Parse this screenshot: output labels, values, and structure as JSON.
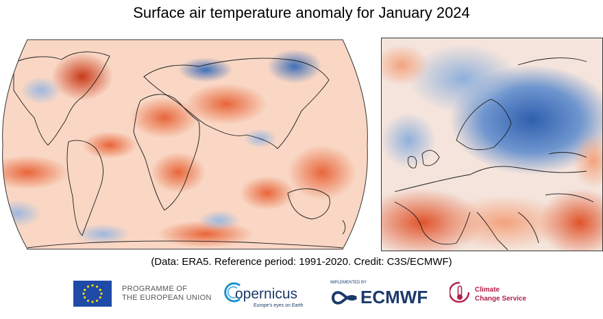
{
  "title": "Surface air temperature anomaly for January 2024",
  "credit": "(Data: ERA5.  Reference period: 1991-2020.  Credit: C3S/ECMWF)",
  "maps": {
    "world": {
      "colors": {
        "warm": "#e8653a",
        "cool": "#5b86c5",
        "neutral": "#fbe6da"
      }
    },
    "europe": {
      "colors": {
        "warm": "#e8653a",
        "cool": "#3f72bd",
        "neutral": "#f2f2f5"
      }
    }
  },
  "logos": {
    "eu": {
      "line1": "PROGRAMME OF",
      "line2": "THE EUROPEAN UNION"
    },
    "copernicus": {
      "name": "opernicus",
      "tagline": "Europe's eyes on Earth"
    },
    "ecmwf": {
      "implemented": "IMPLEMENTED BY",
      "name": "ECMWF"
    },
    "c3s": {
      "line1": "Climate",
      "line2": "Change Service"
    }
  }
}
